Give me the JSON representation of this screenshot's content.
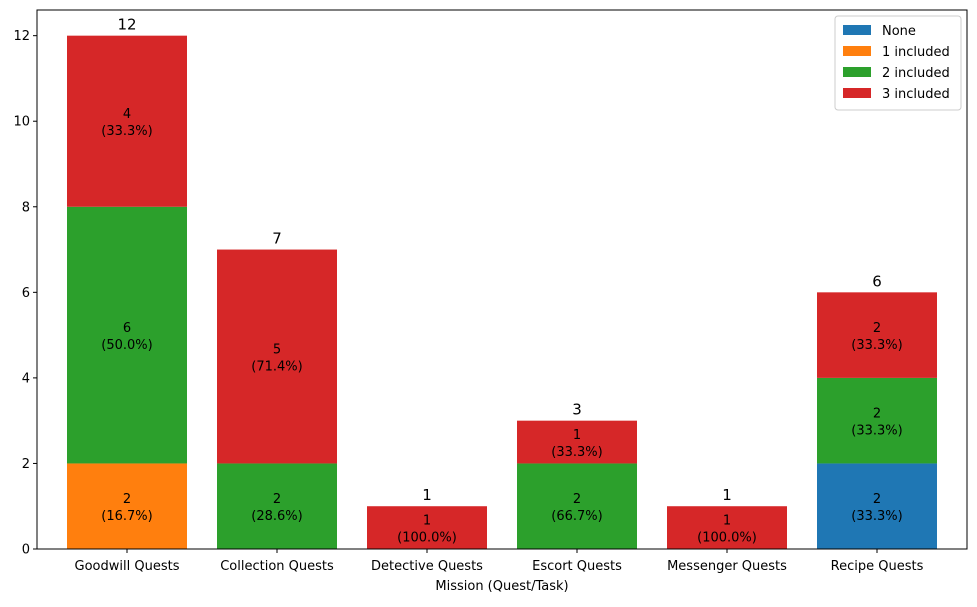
{
  "chart_data": {
    "type": "bar",
    "stacked": true,
    "title": "",
    "xlabel": "Mission (Quest/Task)",
    "ylabel": "",
    "ylim": [
      0,
      12.6
    ],
    "yticks": [
      "0",
      "2",
      "4",
      "6",
      "8",
      "10",
      "12"
    ],
    "grid": false,
    "legend_position": "top-right",
    "categories": [
      "Goodwill Quests",
      "Collection Quests",
      "Detective Quests",
      "Escort Quests",
      "Messenger Quests",
      "Recipe Quests"
    ],
    "totals": [
      "12",
      "7",
      "1",
      "3",
      "1",
      "6"
    ],
    "series": [
      {
        "name": "None",
        "color": "#1f77b4",
        "values": [
          0,
          0,
          0,
          0,
          0,
          2
        ],
        "labels": [
          "",
          "",
          "",
          "",
          "",
          "2\n(33.3%)"
        ]
      },
      {
        "name": "1 included",
        "color": "#ff7f0e",
        "values": [
          2,
          0,
          0,
          0,
          0,
          0
        ],
        "labels": [
          "2\n(16.7%)",
          "",
          "",
          "",
          "",
          ""
        ]
      },
      {
        "name": "2 included",
        "color": "#2ca02c",
        "values": [
          6,
          2,
          0,
          2,
          0,
          2
        ],
        "labels": [
          "6\n(50.0%)",
          "2\n(28.6%)",
          "",
          "2\n(66.7%)",
          "",
          "2\n(33.3%)"
        ]
      },
      {
        "name": "3 included",
        "color": "#d62728",
        "values": [
          4,
          5,
          1,
          1,
          1,
          2
        ],
        "labels": [
          "4\n(33.3%)",
          "5\n(71.4%)",
          "1\n(100.0%)",
          "1\n(33.3%)",
          "1\n(100.0%)",
          "2\n(33.3%)"
        ]
      }
    ]
  }
}
